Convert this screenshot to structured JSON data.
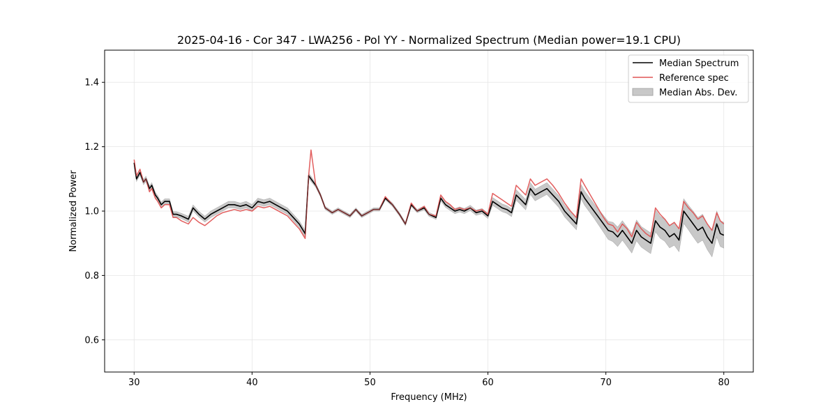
{
  "chart_data": {
    "type": "line",
    "title": "2025-04-16 - Cor 347 - LWA256 - Pol YY - Normalized Spectrum (Median power=19.1 CPU)",
    "xlabel": "Frequency (MHz)",
    "ylabel": "Normalized Power",
    "xlim": [
      27.5,
      82.5
    ],
    "ylim": [
      0.5,
      1.5
    ],
    "xticks": [
      30,
      40,
      50,
      60,
      70,
      80
    ],
    "yticks": [
      0.6,
      0.8,
      1.0,
      1.2,
      1.4
    ],
    "xtick_labels": [
      "30",
      "40",
      "50",
      "60",
      "70",
      "80"
    ],
    "ytick_labels": [
      "0.6",
      "0.8",
      "1.0",
      "1.2",
      "1.4"
    ],
    "grid": true,
    "legend_position": "top-right",
    "colors": {
      "median": "#000000",
      "reference": "#e05555",
      "mad": "#c8c8c8"
    },
    "series": [
      {
        "name": "Median Spectrum",
        "x": [
          30.0,
          30.2,
          30.5,
          30.8,
          31.0,
          31.3,
          31.5,
          31.8,
          32.0,
          32.3,
          32.6,
          33.0,
          33.3,
          33.6,
          34.0,
          34.6,
          35.0,
          35.5,
          36.0,
          36.5,
          37.0,
          37.5,
          38.0,
          38.5,
          39.0,
          39.5,
          40.0,
          40.5,
          41.0,
          41.5,
          42.0,
          42.5,
          43.0,
          43.5,
          44.0,
          44.5,
          44.8,
          45.0,
          45.4,
          45.8,
          46.2,
          46.8,
          47.3,
          47.8,
          48.3,
          48.8,
          49.3,
          49.8,
          50.3,
          50.8,
          51.3,
          51.9,
          52.5,
          53.0,
          53.5,
          54.0,
          54.6,
          55.0,
          55.6,
          56.0,
          56.4,
          56.8,
          57.2,
          57.6,
          58.0,
          58.5,
          59.0,
          59.5,
          60.0,
          60.4,
          60.8,
          61.2,
          61.6,
          62.0,
          62.4,
          62.8,
          63.2,
          63.6,
          64.0,
          64.5,
          65.0,
          65.5,
          66.0,
          66.5,
          67.0,
          67.5,
          67.9,
          68.2,
          68.6,
          69.0,
          69.4,
          69.8,
          70.2,
          70.6,
          71.0,
          71.4,
          71.8,
          72.2,
          72.6,
          73.0,
          73.4,
          73.8,
          74.2,
          74.6,
          75.0,
          75.4,
          75.8,
          76.2,
          76.6,
          77.0,
          77.4,
          77.8,
          78.2,
          78.6,
          79.0,
          79.4,
          79.7,
          80.0
        ],
        "y": [
          1.15,
          1.1,
          1.12,
          1.09,
          1.1,
          1.07,
          1.08,
          1.05,
          1.04,
          1.02,
          1.03,
          1.03,
          0.99,
          0.99,
          0.985,
          0.975,
          1.01,
          0.99,
          0.975,
          0.99,
          1.0,
          1.01,
          1.02,
          1.02,
          1.015,
          1.02,
          1.01,
          1.03,
          1.025,
          1.03,
          1.02,
          1.01,
          1.0,
          0.98,
          0.96,
          0.93,
          1.11,
          1.1,
          1.08,
          1.05,
          1.01,
          0.995,
          1.005,
          0.995,
          0.985,
          1.005,
          0.985,
          0.995,
          1.005,
          1.005,
          1.04,
          1.02,
          0.99,
          0.96,
          1.02,
          1.0,
          1.01,
          0.99,
          0.98,
          1.04,
          1.02,
          1.01,
          1.0,
          1.005,
          1.0,
          1.01,
          0.995,
          1.0,
          0.985,
          1.03,
          1.02,
          1.01,
          1.005,
          0.995,
          1.05,
          1.035,
          1.02,
          1.07,
          1.05,
          1.06,
          1.07,
          1.05,
          1.03,
          1.0,
          0.98,
          0.96,
          1.06,
          1.04,
          1.02,
          1.0,
          0.98,
          0.96,
          0.94,
          0.935,
          0.92,
          0.94,
          0.92,
          0.9,
          0.94,
          0.92,
          0.91,
          0.9,
          0.97,
          0.95,
          0.94,
          0.92,
          0.93,
          0.91,
          1.0,
          0.98,
          0.96,
          0.94,
          0.95,
          0.92,
          0.9,
          0.96,
          0.93,
          0.925
        ],
        "color": "#000000"
      },
      {
        "name": "Reference spec",
        "x": [
          30.0,
          30.2,
          30.5,
          30.8,
          31.0,
          31.3,
          31.5,
          31.8,
          32.0,
          32.3,
          32.6,
          33.0,
          33.3,
          33.6,
          34.0,
          34.6,
          35.0,
          35.5,
          36.0,
          36.5,
          37.0,
          37.5,
          38.0,
          38.5,
          39.0,
          39.5,
          40.0,
          40.5,
          41.0,
          41.5,
          42.0,
          42.5,
          43.0,
          43.5,
          44.0,
          44.5,
          44.8,
          45.0,
          45.4,
          45.8,
          46.2,
          46.8,
          47.3,
          47.8,
          48.3,
          48.8,
          49.3,
          49.8,
          50.3,
          50.8,
          51.3,
          51.9,
          52.5,
          53.0,
          53.5,
          54.0,
          54.6,
          55.0,
          55.6,
          56.0,
          56.4,
          56.8,
          57.2,
          57.6,
          58.0,
          58.5,
          59.0,
          59.5,
          60.0,
          60.4,
          60.8,
          61.2,
          61.6,
          62.0,
          62.4,
          62.8,
          63.2,
          63.6,
          64.0,
          64.5,
          65.0,
          65.5,
          66.0,
          66.5,
          67.0,
          67.5,
          67.9,
          68.2,
          68.6,
          69.0,
          69.4,
          69.8,
          70.2,
          70.6,
          71.0,
          71.4,
          71.8,
          72.2,
          72.6,
          73.0,
          73.4,
          73.8,
          74.2,
          74.6,
          75.0,
          75.4,
          75.8,
          76.2,
          76.6,
          77.0,
          77.4,
          77.8,
          78.2,
          78.6,
          79.0,
          79.4,
          79.7,
          80.0
        ],
        "y": [
          1.16,
          1.11,
          1.13,
          1.09,
          1.1,
          1.06,
          1.07,
          1.04,
          1.03,
          1.01,
          1.02,
          1.02,
          0.98,
          0.98,
          0.97,
          0.96,
          0.98,
          0.965,
          0.955,
          0.97,
          0.985,
          0.995,
          1.0,
          1.005,
          1.0,
          1.005,
          1.0,
          1.015,
          1.01,
          1.015,
          1.005,
          0.995,
          0.985,
          0.965,
          0.945,
          0.915,
          1.11,
          1.19,
          1.08,
          1.05,
          1.01,
          0.995,
          1.005,
          0.995,
          0.985,
          1.005,
          0.985,
          0.995,
          1.005,
          1.005,
          1.045,
          1.02,
          0.99,
          0.96,
          1.025,
          1.0,
          1.015,
          0.99,
          0.985,
          1.05,
          1.03,
          1.02,
          1.005,
          1.01,
          1.005,
          1.01,
          1.0,
          1.005,
          0.99,
          1.055,
          1.045,
          1.035,
          1.025,
          1.015,
          1.08,
          1.065,
          1.05,
          1.1,
          1.08,
          1.09,
          1.1,
          1.08,
          1.055,
          1.025,
          1.0,
          0.98,
          1.1,
          1.08,
          1.055,
          1.03,
          1.005,
          0.98,
          0.96,
          0.955,
          0.935,
          0.96,
          0.945,
          0.92,
          0.965,
          0.945,
          0.93,
          0.92,
          1.01,
          0.99,
          0.975,
          0.955,
          0.965,
          0.945,
          1.03,
          1.01,
          0.995,
          0.975,
          0.985,
          0.96,
          0.94,
          0.995,
          0.97,
          0.96
        ],
        "color": "#e05555"
      }
    ],
    "mad_band": {
      "name": "Median Abs. Dev.",
      "x": [
        30.0,
        30.2,
        30.5,
        30.8,
        31.0,
        31.3,
        31.5,
        31.8,
        32.0,
        32.3,
        32.6,
        33.0,
        33.3,
        33.6,
        34.0,
        34.6,
        35.0,
        35.5,
        36.0,
        36.5,
        37.0,
        37.5,
        38.0,
        38.5,
        39.0,
        39.5,
        40.0,
        40.5,
        41.0,
        41.5,
        42.0,
        42.5,
        43.0,
        43.5,
        44.0,
        44.5,
        44.8,
        45.0,
        45.4,
        45.8,
        46.2,
        46.8,
        47.3,
        47.8,
        48.3,
        48.8,
        49.3,
        49.8,
        50.3,
        50.8,
        51.3,
        51.9,
        52.5,
        53.0,
        53.5,
        54.0,
        54.6,
        55.0,
        55.6,
        56.0,
        56.4,
        56.8,
        57.2,
        57.6,
        58.0,
        58.5,
        59.0,
        59.5,
        60.0,
        60.4,
        60.8,
        61.2,
        61.6,
        62.0,
        62.4,
        62.8,
        63.2,
        63.6,
        64.0,
        64.5,
        65.0,
        65.5,
        66.0,
        66.5,
        67.0,
        67.5,
        67.9,
        68.2,
        68.6,
        69.0,
        69.4,
        69.8,
        70.2,
        70.6,
        71.0,
        71.4,
        71.8,
        72.2,
        72.6,
        73.0,
        73.4,
        73.8,
        74.2,
        74.6,
        75.0,
        75.4,
        75.8,
        76.2,
        76.6,
        77.0,
        77.4,
        77.8,
        78.2,
        78.6,
        79.0,
        79.4,
        79.7,
        80.0
      ],
      "half_width": [
        0.008,
        0.008,
        0.008,
        0.008,
        0.008,
        0.008,
        0.008,
        0.008,
        0.008,
        0.008,
        0.008,
        0.008,
        0.008,
        0.008,
        0.008,
        0.009,
        0.009,
        0.009,
        0.009,
        0.01,
        0.01,
        0.01,
        0.01,
        0.01,
        0.01,
        0.01,
        0.01,
        0.01,
        0.01,
        0.01,
        0.01,
        0.01,
        0.01,
        0.01,
        0.01,
        0.01,
        0.008,
        0.008,
        0.006,
        0.005,
        0.005,
        0.005,
        0.005,
        0.005,
        0.005,
        0.005,
        0.005,
        0.005,
        0.005,
        0.005,
        0.005,
        0.005,
        0.005,
        0.005,
        0.005,
        0.005,
        0.006,
        0.006,
        0.006,
        0.008,
        0.008,
        0.008,
        0.008,
        0.008,
        0.008,
        0.008,
        0.008,
        0.008,
        0.008,
        0.012,
        0.012,
        0.012,
        0.012,
        0.012,
        0.016,
        0.016,
        0.016,
        0.018,
        0.018,
        0.018,
        0.018,
        0.018,
        0.018,
        0.018,
        0.018,
        0.018,
        0.022,
        0.022,
        0.022,
        0.022,
        0.024,
        0.026,
        0.028,
        0.03,
        0.03,
        0.03,
        0.03,
        0.03,
        0.032,
        0.032,
        0.032,
        0.032,
        0.034,
        0.034,
        0.034,
        0.034,
        0.036,
        0.036,
        0.038,
        0.038,
        0.04,
        0.04,
        0.04,
        0.04,
        0.042,
        0.04,
        0.04,
        0.04
      ]
    },
    "legend": [
      {
        "label": "Median Spectrum",
        "kind": "line",
        "color": "#000000"
      },
      {
        "label": "Reference spec",
        "kind": "line",
        "color": "#e05555"
      },
      {
        "label": "Median Abs. Dev.",
        "kind": "patch",
        "color": "#c8c8c8"
      }
    ]
  }
}
